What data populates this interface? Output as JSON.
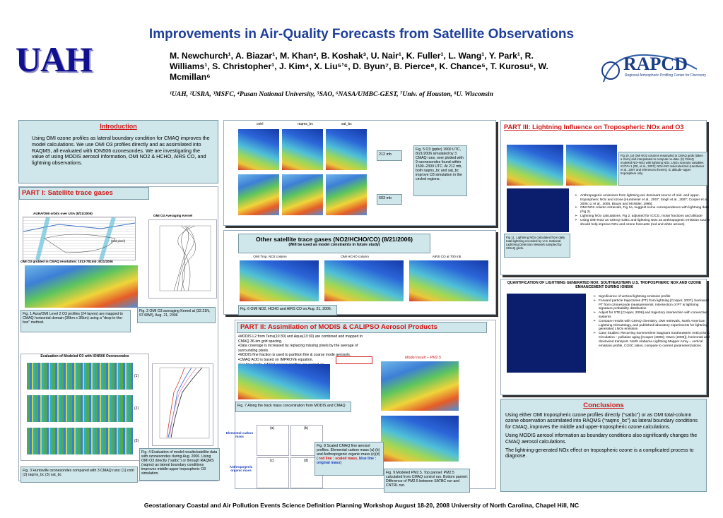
{
  "header": {
    "title": "Improvements in Air-Quality Forecasts from Satellite Observations",
    "logo_left": "UAH",
    "authors": "M. Newchurch¹, A. Biazar¹, M. Khan², B. Koshak³, U. Nair¹, K. Fuller¹, L. Wang¹, Y. Park¹, R. Williams¹, S. Christopher¹, J. Kim⁴, X. Liu⁵ʼ⁶, D. Byun⁷, B. Pierce⁸, K. Chance⁵, T. Kurosu⁵, W. Mcmillan⁶",
    "affiliations": "¹UAH, ²USRA, ³MSFC, ⁴Pusan National University, ⁵SAO, ⁶NASA/UMBC-GEST, ⁷Univ. of Houston, ⁸U. Wisconsin",
    "logo_right": "RAPCD",
    "logo_right_sub": "Regional Atmospheric Profiling Center for Discovery"
  },
  "intro": {
    "heading": "Introduction",
    "text": "Using OMI ozone profiles as lateral boundary condition for CMAQ improves the model calculations. We use OMI O3 profiles directly and as assimilated into RAQMS, all evaluated with ION506 ozonesondes. We are investigating the value of using MODIS aerosol information, OMI NO2 & HCHO, AIRS CO, and lightning observations."
  },
  "part1": {
    "heading": "PART I: Satellite trace gases",
    "fig_a_title": "AURA/OMI orbits over USA (8/21/2006)",
    "fig_b_title": "OMI O3 Averaging Kernel",
    "fig_a_note": "(ssd pixel)",
    "fig_c_title": "OMI O3 gridded in CMAQ resolution; 1013-781mb; 8/21/2006",
    "cap1": "Fig. 1 Aura/OMI Level 2 O3 profiles (24 layers) are mapped to CMAQ horizontal domain (36km x 36km) using a \"drop-in-the-box\" method.",
    "cap2": "Fig. 2 OMI O3 averaging Kernel at (32.21N, 97.68W), Aug. 21, 2006",
    "eval_title": "Evaluation of Modeled O3 with ION506 Ozonesondes",
    "eval_marks": [
      "(1)",
      "(2)",
      "(3)"
    ],
    "cap3": "Fig. 3 Huntsville ozonesondes compared with 3 CMAQ runs: (1) cntrl (2) raqms_bc (3) sat_bc",
    "cap4": "Fig. 4 Evaluation of model results/satellite data with ozonesondes during Aug. 2006. Using OMI O3 directly (\"satbc\") or through RAQMS (raqms) as lateral boundary conditions improves middle-upper tropospheric O3 simulation."
  },
  "fig5": {
    "col_labels": [
      "cntrl",
      "raqms_bc",
      "sat_bc"
    ],
    "row_labels": [
      "212 mb",
      "603 mb"
    ],
    "caption": "Fig. 5 O3 (ppbv) 1900 UTC, 8/21/2006 simulated by 3 CMAQ runs; over plotted with 9 ozonesondes found within 1500–2300 UTC. At 212 mb, both raqms_bc and sat_bc improve O3 simulation in the circled regions."
  },
  "other": {
    "heading": "Other satellite trace gases (NO2/HCHO/CO) (8/21/2006)",
    "sub": "(Will be used as model constraints in future study)",
    "labels": [
      "OMI Trop. NO2 column",
      "OMI HCHO column",
      "AIRS CO at 700 mb"
    ],
    "caption": "Fig. 6 OMI NO2, HCHO and AIRS CO on Aug. 21, 2006."
  },
  "part2": {
    "heading": "PART II: Assimilation of MODIS & CALIPSO Aerosol Products",
    "bullets": [
      "•MODIS L2 from Terra(10:30) and Aqua(13:30) are combined and mapped to CMAQ 36-km grid spacing.",
      "•Data coverage is increased by replacing missing pixels by the average of surrounding pixels.",
      "•MODIS fine fraction is used to partition fine & coarse mode aerosols.",
      "•CMAQ AOD is based on IMPROVE equation.",
      "•For fine mode, CMAQ aerosol profiles are scaled as"
    ],
    "model_result": "Model result – PM2.5",
    "cap7": "Fig. 7 Along the track mass concentration from MODIS and CMAQ",
    "elemental": "Elemental carbon mass",
    "anthro": "Anthropogenic organic mass",
    "panel_marks": [
      "(a)",
      "(b)",
      "(c)",
      "(d)"
    ],
    "cap8_text": "Fig. 8 Scaled CMAQ fine aerosol profiles. Elemental carbon mass (a) (b) and Anthropogenic organic mass (c)(d) ( ",
    "cap8_red": "red line : scaled mass,",
    "cap8_blue": "blue line : original mass",
    "cap8_end": "]",
    "cap9": "Fig. 9 Modeled PM2.5. Top pannel: PM2.5 calculated from CMAQ control run. Bottom pannel: Difference of PM2.5 between SATBC run and CNTRL run."
  },
  "part3": {
    "heading": "PART III: Lightning Influence on Tropospheric NOx and O3",
    "cap10": "Fig 10. (a) OMI NO2 columns resampled to CMAQ grids (taken a 3-km) and interpolated to compute ne-data. (b) CMAQ modeled NO+NO2 with lightning NOx. LNOx scenario variables IC/CG+1 (Ott, et al., 2007); NOx+NO molecules/mol (Huntrieser et al., 2007 and references therein); IC altitude–upper troposphere only.",
    "cap11": "Fig 11. Lightning NOx calculated from daily total lightning recorded by U.S. National Lightning Detection Network sampled by CMAQ grids.",
    "bullets": [
      "Anthropogenic emissions from lightning are dominant source of mid- and upper-tropospheric NOx and ozone [Huntrieser et al., 2007; Singh et al., 2007; Cooper et al., 2006; Li et al., 2005, Biazar and McNider, 1995].",
      "OMI NO2 column retrievals, Fig 1a, suggest some correspondence with lightning data (Fig 2).",
      "Lightning NOx calculations, Fig 2, adjusted for IC/CG, molar fractions and altitude",
      "Using OMI NO2 as CMAQ IC/BC and lightning NOx as anthropogenic emission source should help improve NOx and ozone forecasts (red and white arrows)."
    ],
    "quant_title": "QUANTIFICATION OF LIGHTNING GENERATED NOX: SOUTHEASTERN U.S. TROPOSPHERIC NOX AND OZONE ENHANCEMENT DURING ION506",
    "quant_bullets": [
      "Significance of vertical lightning emission profile",
      "Forward particle trajectories (PT) from lightning [Cooper, 2007], backward PT from ozonesonde measurements, intersection of PT is lightning signature probability distribution",
      "Adjust for STE [Cooper, 2006] and trajectory intersection with convective systems",
      "Compare results with CMAQ chemistry, OMI retrievals, North American Lightning Climatology, and published laboratory experiments for lightning generated LNOx emission",
      "Case Studies: Recurring Summertime Stagnant Southeastern Anticyclonic Circulation – pollution aging [Cooper (2006); Owen (2006)], horizontal and downwind transport. North Alabama Lightning Mapper Array – vertical emission profile, CG/IC ratios, compare to current parameterizations."
    ]
  },
  "conclusions": {
    "heading": "Conclusions",
    "p1": "Using either OMI tropospheric ozone profiles directly (“satbc”) or as OMI total-column ozone observation assimilated into RAQMS (“raqms_bc”) as lateral boundary conditions for CMAQ, improves the middle and upper-tropospheric ozone calculations.",
    "p2": "Using MODIS aerosol information as boundary conditions also significantly changes the CMAQ aerosol calculations.",
    "p3": "The lightning-generated NOx effect on tropospheric ozone is a complicated process to diagnose."
  },
  "footer": "Geostationary Coastal and Air Pollution Events Science Definition Planning Workshop August 18-20, 2008 University of North Carolina, Chapel Hill, NC"
}
